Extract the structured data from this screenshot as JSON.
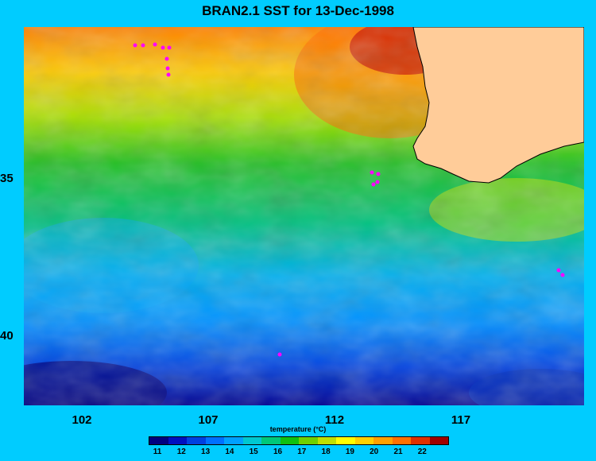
{
  "title": "BRAN2.1 SST for 13-Dec-1998",
  "y_ticks": [
    "35",
    "40"
  ],
  "x_ticks": [
    "102",
    "107",
    "112",
    "117"
  ],
  "colorbar": {
    "title": "temperature (°C)",
    "labels": [
      "11",
      "12",
      "13",
      "14",
      "15",
      "16",
      "17",
      "18",
      "19",
      "20",
      "21",
      "22"
    ],
    "colors": [
      "#000080",
      "#0010c0",
      "#0040e0",
      "#0070ff",
      "#00a0ff",
      "#00c8d0",
      "#00c878",
      "#10c010",
      "#70d000",
      "#c0e000",
      "#ffff00",
      "#ffd000",
      "#ffa000",
      "#ff7000",
      "#e03000",
      "#a00000"
    ]
  },
  "colors": {
    "background": "#00ccff",
    "land": "#ffcc99",
    "markers": "#ff00ff"
  }
}
